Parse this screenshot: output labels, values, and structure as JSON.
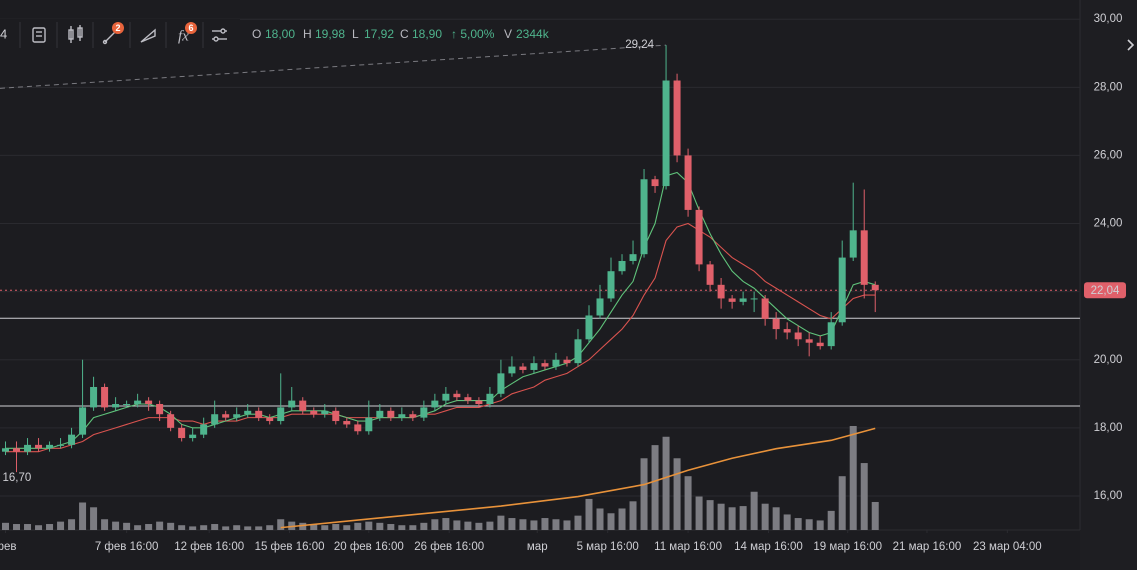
{
  "chart_data": {
    "type": "candlestick",
    "toolbar": {
      "symbol_fragment": "4",
      "badges": [
        "2",
        "6"
      ]
    },
    "legend": {
      "open_key": "O",
      "open": "18,00",
      "high_key": "H",
      "high": "19,98",
      "low_key": "L",
      "low": "17,92",
      "close_key": "C",
      "close": "18,90",
      "change": "↑ 5,00%",
      "volume_key": "V",
      "volume": "2344k"
    },
    "ylim": [
      15,
      30.3
    ],
    "yticks": [
      {
        "value": 30,
        "label": "30,00"
      },
      {
        "value": 28,
        "label": "28,00"
      },
      {
        "value": 26,
        "label": "26,00"
      },
      {
        "value": 24,
        "label": "24,00"
      },
      {
        "value": 22,
        "label": "22,00"
      },
      {
        "value": 20,
        "label": "20,00"
      },
      {
        "value": 18,
        "label": "18,00"
      },
      {
        "value": 16,
        "label": "16,00"
      }
    ],
    "xlim": [
      -0.5,
      97.6
    ],
    "xticks": [
      {
        "value": 0,
        "label": "фев"
      },
      {
        "value": 11,
        "label": "7 фев 16:00"
      },
      {
        "value": 18.5,
        "label": "12 фев 16:00"
      },
      {
        "value": 25.8,
        "label": "15 фев 16:00"
      },
      {
        "value": 33,
        "label": "20 фев 16:00"
      },
      {
        "value": 40.3,
        "label": "26 фев 16:00"
      },
      {
        "value": 48.3,
        "label": "мар"
      },
      {
        "value": 54.7,
        "label": "5 мар 16:00"
      },
      {
        "value": 62,
        "label": "11 мар 16:00"
      },
      {
        "value": 69.3,
        "label": "14 мар 16:00"
      },
      {
        "value": 76.5,
        "label": "19 мар 16:00"
      },
      {
        "value": 83.7,
        "label": "21 мар 16:00"
      },
      {
        "value": 91,
        "label": "23 мар 04:00"
      }
    ],
    "grid": true,
    "up_color": "#4fb48d",
    "down_color": "#e0606a",
    "open": [
      17.3,
      17.4,
      17.3,
      17.5,
      17.4,
      17.5,
      17.5,
      17.8,
      18.6,
      19.2,
      18.6,
      18.7,
      18.7,
      18.8,
      18.7,
      18.4,
      18.0,
      17.7,
      17.8,
      18.1,
      18.4,
      18.3,
      18.4,
      18.5,
      18.3,
      18.2,
      18.6,
      18.8,
      18.5,
      18.4,
      18.5,
      18.2,
      18.1,
      17.9,
      18.3,
      18.5,
      18.3,
      18.4,
      18.3,
      18.6,
      18.8,
      19.0,
      18.9,
      18.8,
      18.7,
      19.0,
      19.6,
      19.8,
      19.7,
      19.9,
      19.8,
      20.0,
      19.9,
      20.6,
      21.3,
      21.8,
      22.6,
      22.9,
      23.1,
      25.3,
      25.1,
      28.2,
      26.0,
      24.4,
      22.8,
      22.2,
      21.8,
      21.7,
      21.8,
      21.8,
      21.2,
      20.9,
      20.8,
      20.6,
      20.5,
      20.4,
      21.1,
      23.0,
      23.8,
      22.2
    ],
    "high": [
      17.6,
      17.6,
      17.7,
      17.7,
      17.6,
      17.7,
      18.0,
      20.0,
      19.5,
      19.3,
      18.9,
      18.8,
      19.0,
      18.9,
      18.8,
      18.5,
      18.1,
      18.0,
      18.3,
      18.8,
      18.5,
      18.6,
      18.7,
      18.6,
      18.4,
      19.6,
      19.2,
      18.9,
      18.6,
      18.7,
      18.6,
      18.3,
      18.2,
      18.8,
      18.7,
      18.6,
      18.6,
      18.5,
      18.8,
      19.0,
      19.2,
      19.1,
      19.0,
      18.9,
      19.2,
      20.0,
      20.1,
      19.9,
      20.1,
      20.0,
      20.2,
      20.1,
      20.9,
      21.6,
      22.2,
      23.0,
      23.1,
      23.5,
      25.6,
      25.4,
      29.24,
      28.4,
      26.2,
      24.5,
      22.9,
      22.4,
      21.9,
      22.0,
      22.0,
      21.9,
      21.4,
      21.1,
      21.0,
      20.8,
      20.7,
      21.4,
      23.5,
      25.2,
      25.0,
      22.3
    ],
    "low": [
      17.2,
      16.7,
      17.2,
      17.3,
      17.3,
      17.4,
      17.4,
      17.7,
      18.5,
      18.5,
      18.5,
      18.6,
      18.6,
      18.5,
      18.2,
      17.9,
      17.6,
      17.6,
      17.7,
      18.0,
      18.2,
      18.2,
      18.3,
      18.2,
      18.1,
      18.1,
      18.5,
      18.4,
      18.3,
      18.3,
      18.1,
      18.0,
      17.8,
      17.8,
      18.2,
      18.2,
      18.2,
      18.2,
      18.2,
      18.5,
      18.7,
      18.8,
      18.7,
      18.6,
      18.6,
      18.9,
      19.5,
      19.6,
      19.6,
      19.7,
      19.7,
      19.8,
      19.8,
      20.5,
      21.2,
      21.7,
      22.5,
      22.8,
      23.0,
      24.9,
      25.0,
      25.8,
      24.2,
      22.6,
      22.0,
      21.5,
      21.5,
      21.6,
      21.4,
      21.0,
      20.6,
      20.6,
      20.4,
      20.1,
      20.3,
      20.3,
      21.0,
      22.9,
      21.8,
      21.4
    ],
    "close": [
      17.4,
      17.3,
      17.5,
      17.4,
      17.5,
      17.5,
      17.8,
      18.6,
      19.2,
      18.6,
      18.7,
      18.7,
      18.8,
      18.7,
      18.4,
      18.0,
      17.7,
      17.8,
      18.1,
      18.4,
      18.3,
      18.4,
      18.5,
      18.3,
      18.2,
      18.6,
      18.8,
      18.5,
      18.4,
      18.5,
      18.2,
      18.1,
      17.9,
      18.3,
      18.5,
      18.3,
      18.4,
      18.3,
      18.6,
      18.8,
      19.0,
      18.9,
      18.8,
      18.7,
      19.0,
      19.6,
      19.8,
      19.7,
      19.9,
      19.8,
      20.0,
      19.9,
      20.6,
      21.3,
      21.8,
      22.6,
      22.9,
      23.1,
      25.3,
      25.1,
      28.2,
      26.0,
      24.4,
      22.8,
      22.2,
      21.8,
      21.7,
      21.8,
      21.8,
      21.2,
      20.9,
      20.8,
      20.6,
      20.5,
      20.4,
      21.1,
      23.0,
      23.8,
      22.2,
      22.04
    ],
    "volume": [
      600,
      500,
      500,
      400,
      500,
      700,
      900,
      2300,
      1900,
      900,
      700,
      600,
      400,
      500,
      700,
      600,
      400,
      300,
      400,
      500,
      300,
      400,
      300,
      300,
      400,
      900,
      700,
      600,
      500,
      400,
      500,
      400,
      600,
      700,
      600,
      500,
      400,
      400,
      600,
      900,
      1000,
      800,
      700,
      600,
      700,
      1200,
      1000,
      900,
      800,
      1000,
      900,
      800,
      1200,
      2600,
      1800,
      1400,
      1800,
      2400,
      6000,
      7100,
      7800,
      6000,
      4500,
      2800,
      2500,
      2200,
      1900,
      2000,
      3200,
      2200,
      1900,
      1300,
      1000,
      900,
      800,
      1600,
      4500,
      8700,
      5600,
      2344
    ],
    "volume_color": "#7c7c82",
    "ma_fast": {
      "color": "#5fc27a",
      "values": [
        17.4,
        17.4,
        17.4,
        17.4,
        17.4,
        17.5,
        17.6,
        17.9,
        18.3,
        18.4,
        18.5,
        18.6,
        18.7,
        18.7,
        18.6,
        18.4,
        18.1,
        18.0,
        18.0,
        18.1,
        18.2,
        18.3,
        18.4,
        18.4,
        18.3,
        18.4,
        18.5,
        18.5,
        18.5,
        18.5,
        18.4,
        18.3,
        18.2,
        18.2,
        18.3,
        18.3,
        18.3,
        18.3,
        18.4,
        18.5,
        18.7,
        18.8,
        18.8,
        18.8,
        18.8,
        19.1,
        19.3,
        19.5,
        19.6,
        19.7,
        19.8,
        19.9,
        20.1,
        20.5,
        20.9,
        21.4,
        21.9,
        22.3,
        23.3,
        24.0,
        25.4,
        25.5,
        25.2,
        24.4,
        23.7,
        23.1,
        22.6,
        22.3,
        22.1,
        21.8,
        21.5,
        21.2,
        21.0,
        20.8,
        20.7,
        20.8,
        21.5,
        22.2,
        22.3,
        22.2
      ]
    },
    "ma_slow": {
      "color": "#d9534f",
      "values": [
        17.3,
        17.3,
        17.3,
        17.3,
        17.4,
        17.4,
        17.5,
        17.6,
        17.8,
        17.9,
        18.0,
        18.1,
        18.2,
        18.3,
        18.3,
        18.3,
        18.2,
        18.2,
        18.1,
        18.2,
        18.2,
        18.2,
        18.3,
        18.3,
        18.3,
        18.3,
        18.4,
        18.4,
        18.4,
        18.4,
        18.4,
        18.3,
        18.3,
        18.3,
        18.3,
        18.3,
        18.3,
        18.3,
        18.4,
        18.4,
        18.5,
        18.6,
        18.6,
        18.6,
        18.7,
        18.8,
        19.0,
        19.1,
        19.2,
        19.4,
        19.5,
        19.6,
        19.8,
        20.0,
        20.3,
        20.6,
        20.9,
        21.3,
        21.9,
        22.4,
        23.5,
        23.9,
        24.0,
        23.8,
        23.6,
        23.3,
        23.0,
        22.8,
        22.6,
        22.3,
        22.1,
        21.9,
        21.7,
        21.5,
        21.3,
        21.2,
        21.5,
        21.8,
        21.9,
        21.9
      ]
    },
    "volume_ma": {
      "color": "#e8923a",
      "x": [
        25,
        35,
        45,
        52,
        58,
        62,
        66,
        70,
        75,
        79
      ],
      "values": [
        200,
        1100,
        2000,
        2800,
        3800,
        5000,
        6000,
        6800,
        7500,
        8500
      ]
    },
    "levels": [
      21.22,
      18.64
    ],
    "last_price": {
      "value": 22.04,
      "label": "22,04"
    },
    "trendline": {
      "from": 27.97,
      "to": 29.24
    },
    "peak_label": {
      "value": 29.24,
      "label": "29,24"
    },
    "low_label": {
      "value": 16.7,
      "label": "16,70"
    }
  }
}
